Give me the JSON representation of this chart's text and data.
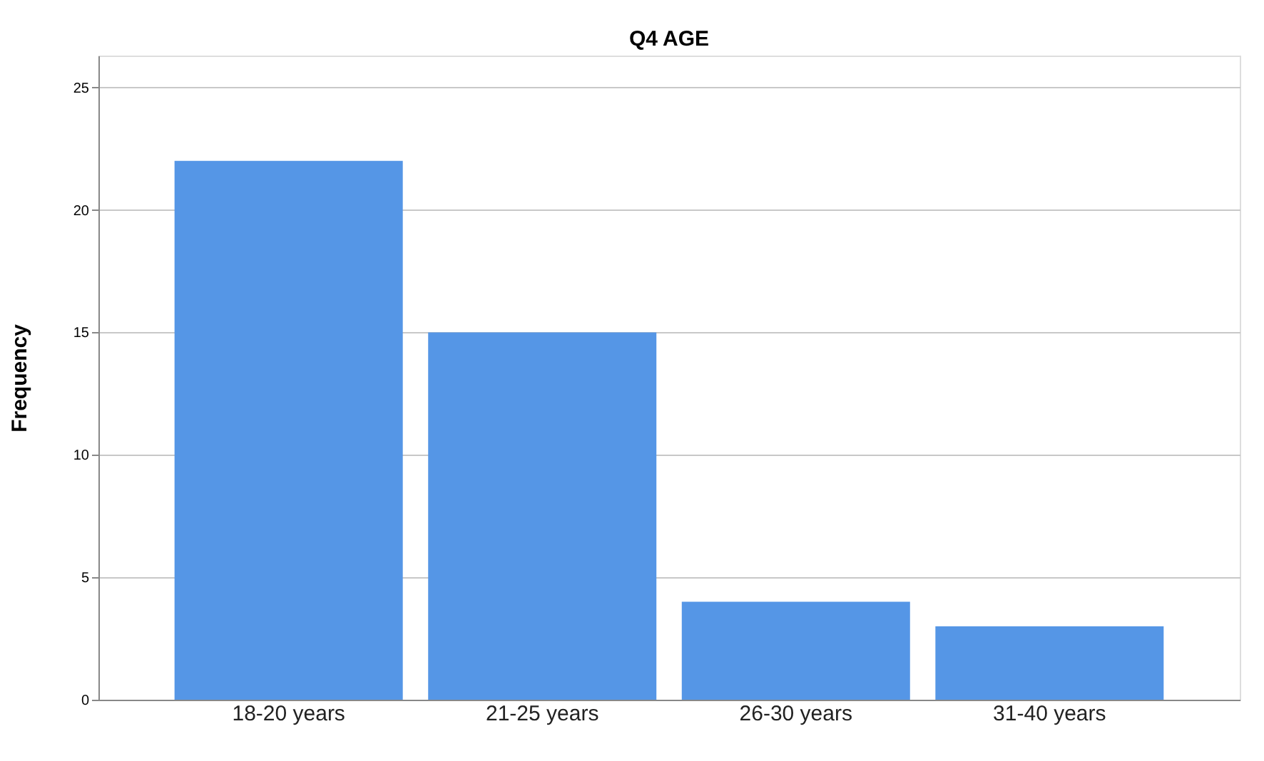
{
  "chart_data": {
    "type": "bar",
    "title": "Q4 AGE",
    "ylabel": "Frequency",
    "categories": [
      "18-20 years",
      "21-25 years",
      "26-30 years",
      "31-40 years"
    ],
    "values": [
      22,
      15,
      4,
      3
    ],
    "color": "#5596e6",
    "ylim": [
      0,
      26.3
    ],
    "yticks": [
      0,
      5,
      10,
      15,
      20,
      25
    ],
    "grid": "y"
  }
}
